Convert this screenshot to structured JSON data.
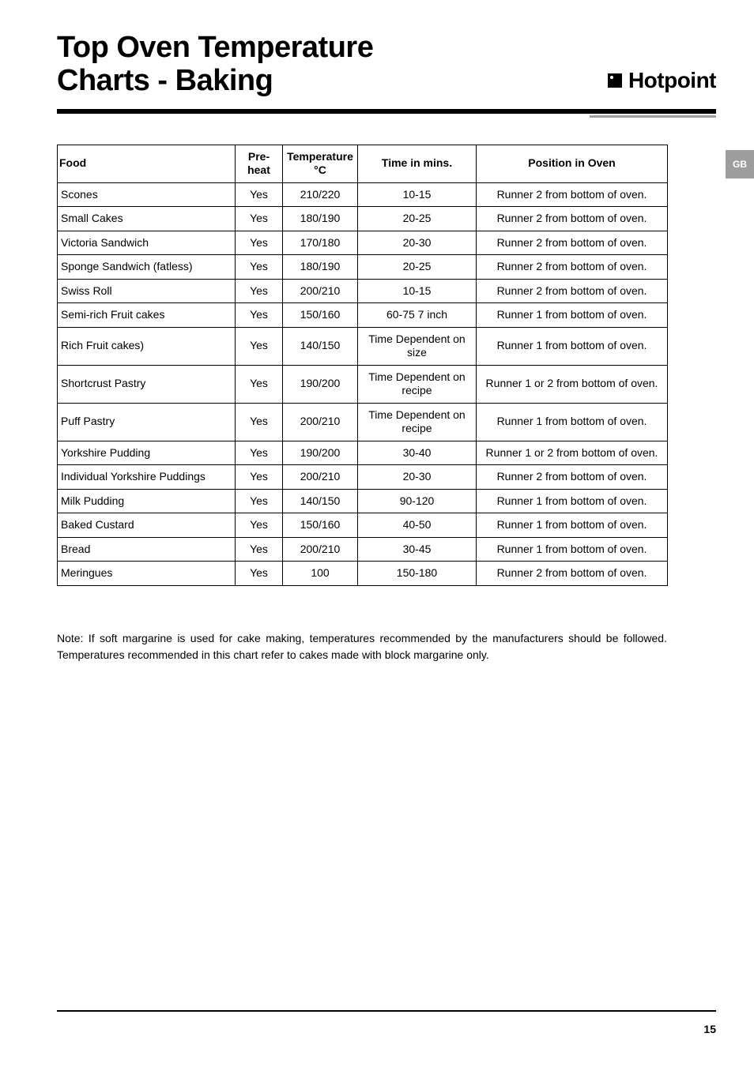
{
  "header": {
    "title_line1": "Top Oven Temperature",
    "title_line2": "Charts - Baking",
    "brand": "Hotpoint",
    "region_tab": "GB",
    "hr_color": "#000000",
    "accent_color": "#9e9e9e"
  },
  "table": {
    "columns": {
      "food": "Food",
      "preheat": "Pre-heat",
      "temp": "Temperature °C",
      "time": "Time in mins.",
      "position": "Position in Oven"
    },
    "rows": [
      {
        "food": "Scones",
        "preheat": "Yes",
        "temp": "210/220",
        "time": "10-15",
        "position": "Runner 2 from bottom of oven."
      },
      {
        "food": "Small Cakes",
        "preheat": "Yes",
        "temp": "180/190",
        "time": "20-25",
        "position": "Runner 2 from bottom of oven."
      },
      {
        "food": "Victoria Sandwich",
        "preheat": "Yes",
        "temp": "170/180",
        "time": "20-30",
        "position": "Runner 2 from bottom of oven."
      },
      {
        "food": "Sponge Sandwich (fatless)",
        "preheat": "Yes",
        "temp": "180/190",
        "time": "20-25",
        "position": "Runner 2 from bottom of oven."
      },
      {
        "food": "Swiss Roll",
        "preheat": "Yes",
        "temp": "200/210",
        "time": "10-15",
        "position": "Runner 2 from bottom of oven."
      },
      {
        "food": "Semi-rich Fruit cakes",
        "preheat": "Yes",
        "temp": "150/160",
        "time": "60-75   7 inch",
        "position": "Runner 1 from bottom of oven."
      },
      {
        "food": "Rich Fruit cakes)",
        "preheat": "Yes",
        "temp": "140/150",
        "time": "Time Dependent on size",
        "position": "Runner 1 from bottom of oven."
      },
      {
        "food": "Shortcrust Pastry",
        "preheat": "Yes",
        "temp": "190/200",
        "time": "Time Dependent on recipe",
        "position": "Runner 1 or 2 from bottom of oven."
      },
      {
        "food": "Puff Pastry",
        "preheat": "Yes",
        "temp": "200/210",
        "time": "Time Dependent on recipe",
        "position": "Runner 1 from bottom of oven."
      },
      {
        "food": "Yorkshire Pudding",
        "preheat": "Yes",
        "temp": "190/200",
        "time": "30-40",
        "position": "Runner 1 or 2 from bottom of oven."
      },
      {
        "food": "Individual Yorkshire Puddings",
        "preheat": "Yes",
        "temp": "200/210",
        "time": "20-30",
        "position": "Runner 2 from bottom of oven."
      },
      {
        "food": "Milk Pudding",
        "preheat": "Yes",
        "temp": "140/150",
        "time": "90-120",
        "position": "Runner 1 from bottom of oven."
      },
      {
        "food": "Baked Custard",
        "preheat": "Yes",
        "temp": "150/160",
        "time": "40-50",
        "position": "Runner 1 from bottom of oven."
      },
      {
        "food": "Bread",
        "preheat": "Yes",
        "temp": "200/210",
        "time": "30-45",
        "position": "Runner 1 from bottom of oven."
      },
      {
        "food": "Meringues",
        "preheat": "Yes",
        "temp": "100",
        "time": "150-180",
        "position": "Runner 2 from bottom of oven."
      }
    ],
    "border_color": "#000000",
    "fontsize": 14
  },
  "note": "Note: If soft margarine is used for cake making, temperatures recommended by the manufacturers should be followed. Temperatures recommended in this chart refer to cakes made with block margarine only.",
  "footer": {
    "page_number": "15"
  }
}
